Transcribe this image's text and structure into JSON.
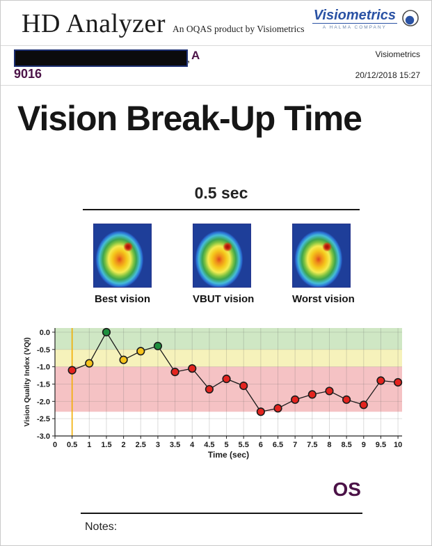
{
  "header": {
    "app_title": "HD Analyzer",
    "app_subtitle": "An OQAS product by Visiometrics",
    "logo_name": "Visiometrics",
    "logo_tagline": "A HALMA COMPANY"
  },
  "info_bar": {
    "patient_name_separator": ",",
    "patient_name_visible": "A",
    "patient_id": "9016",
    "clinic": "Visiometrics",
    "datetime": "20/12/2018 15:27"
  },
  "main": {
    "title": "Vision Break-Up Time",
    "vbut_value": "0.5 sec",
    "images": [
      {
        "label": "Best vision"
      },
      {
        "label": "VBUT vision"
      },
      {
        "label": "Worst vision"
      }
    ],
    "eye_label": "OS",
    "notes_label": "Notes:"
  },
  "colors": {
    "accent_purple": "#4b1247",
    "logo_blue": "#2a52a4"
  },
  "chart_data": {
    "type": "line",
    "xlabel": "Time (sec)",
    "ylabel": "Vision Quality Index (VQI)",
    "xlim": [
      0,
      10.12
    ],
    "ylim": [
      -3.0,
      0.12
    ],
    "grid": true,
    "x": [
      0.5,
      1,
      1.5,
      2,
      2.5,
      3,
      3.5,
      4,
      4.5,
      5,
      5.5,
      6,
      6.5,
      7,
      7.5,
      8,
      8.5,
      9,
      9.5,
      10
    ],
    "y": [
      -1.1,
      -0.9,
      0.0,
      -0.8,
      -0.55,
      -0.4,
      -1.15,
      -1.05,
      -1.65,
      -1.35,
      -1.55,
      -2.3,
      -2.2,
      -1.95,
      -1.8,
      -1.7,
      -1.95,
      -2.1,
      -1.4,
      -1.45
    ],
    "point_status": [
      "red",
      "yellow",
      "green",
      "yellow",
      "yellow",
      "green",
      "red",
      "red",
      "red",
      "red",
      "red",
      "red",
      "red",
      "red",
      "red",
      "red",
      "red",
      "red",
      "red",
      "red"
    ],
    "marker_colors": {
      "red": "#e3241f",
      "yellow": "#f6c41d",
      "green": "#1e8f3e"
    },
    "line_color": "#1a1a1a",
    "bands": [
      {
        "from": 0.12,
        "to": -0.5,
        "color": "#cfe7c4"
      },
      {
        "from": -0.5,
        "to": -1.0,
        "color": "#f6f2bb"
      },
      {
        "from": -1.0,
        "to": -2.3,
        "color": "#f5c2c4"
      }
    ],
    "vbut_line": {
      "x": 0.5,
      "color": "#f2ae00"
    },
    "xticks": [
      {
        "value": 0,
        "label": "0"
      },
      {
        "value": 0.5,
        "label": "0.5"
      },
      {
        "value": 1,
        "label": "1"
      },
      {
        "value": 1.5,
        "label": "1.5"
      },
      {
        "value": 2,
        "label": "2"
      },
      {
        "value": 2.5,
        "label": "2.5"
      },
      {
        "value": 3,
        "label": "3"
      },
      {
        "value": 3.5,
        "label": "3.5"
      },
      {
        "value": 4,
        "label": "4"
      },
      {
        "value": 4.5,
        "label": "4.5"
      },
      {
        "value": 5,
        "label": "5"
      },
      {
        "value": 5.5,
        "label": "5.5"
      },
      {
        "value": 6,
        "label": "6"
      },
      {
        "value": 6.5,
        "label": "6.5"
      },
      {
        "value": 7,
        "label": "7"
      },
      {
        "value": 7.5,
        "label": "7.5"
      },
      {
        "value": 8,
        "label": "8"
      },
      {
        "value": 8.5,
        "label": "8.5"
      },
      {
        "value": 9,
        "label": "9"
      },
      {
        "value": 9.5,
        "label": "9.5"
      },
      {
        "value": 10,
        "label": "10"
      }
    ],
    "yticks": [
      {
        "value": 0,
        "label": "0.0"
      },
      {
        "value": -0.5,
        "label": "-0.5"
      },
      {
        "value": -1,
        "label": "-1.0"
      },
      {
        "value": -1.5,
        "label": "-1.5"
      },
      {
        "value": -2,
        "label": "-2.0"
      },
      {
        "value": -2.5,
        "label": "-2.5"
      },
      {
        "value": -3,
        "label": "-3.0"
      }
    ]
  }
}
